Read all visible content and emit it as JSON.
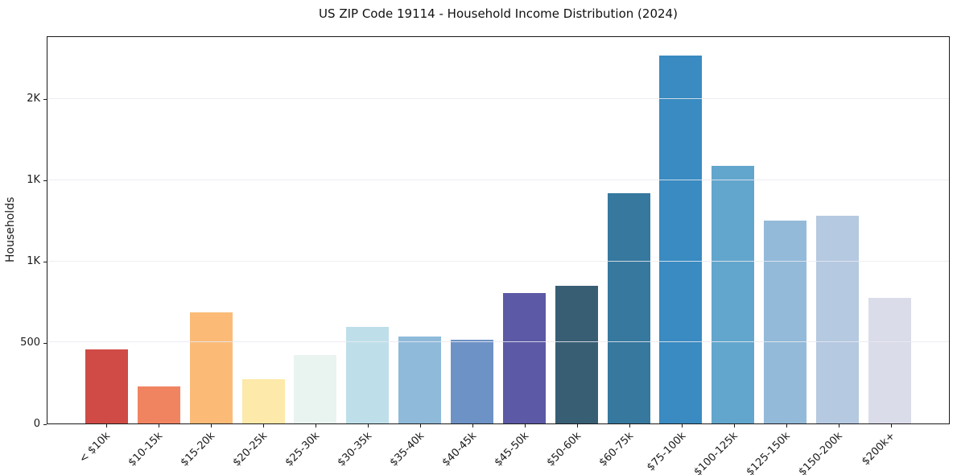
{
  "chart_data": {
    "type": "bar",
    "title": "US ZIP Code 19114 - Household Income Distribution (2024)",
    "xlabel": "",
    "ylabel": "Households",
    "categories": [
      "< $10k",
      "$10-15k",
      "$15-20k",
      "$20-25k",
      "$25-30k",
      "$30-35k",
      "$35-40k",
      "$40-45k",
      "$45-50k",
      "$50-60k",
      "$60-75k",
      "$75-100k",
      "$100-125k",
      "$125-150k",
      "$150-200k",
      "$200k+"
    ],
    "values": [
      455,
      230,
      685,
      272,
      420,
      595,
      535,
      515,
      805,
      850,
      1420,
      2270,
      1590,
      1250,
      1280,
      775
    ],
    "bar_colors": [
      "#d04b46",
      "#f08461",
      "#fbbb77",
      "#fde9a9",
      "#e9f4f1",
      "#bedfe9",
      "#8fbada",
      "#6d92c6",
      "#5c59a6",
      "#385e74",
      "#36789e",
      "#398bc1",
      "#62a6cd",
      "#93bad9",
      "#b5c9e1",
      "#dbdce9"
    ],
    "ylim": [
      0,
      2384
    ],
    "ytick_values": [
      0,
      500,
      1000,
      1500,
      2000
    ],
    "ytick_labels": [
      "0",
      "500",
      "1K",
      "1K",
      "2K"
    ],
    "grid": "horizontal",
    "gridline_color": "#e9e9f0",
    "legend": "none"
  }
}
